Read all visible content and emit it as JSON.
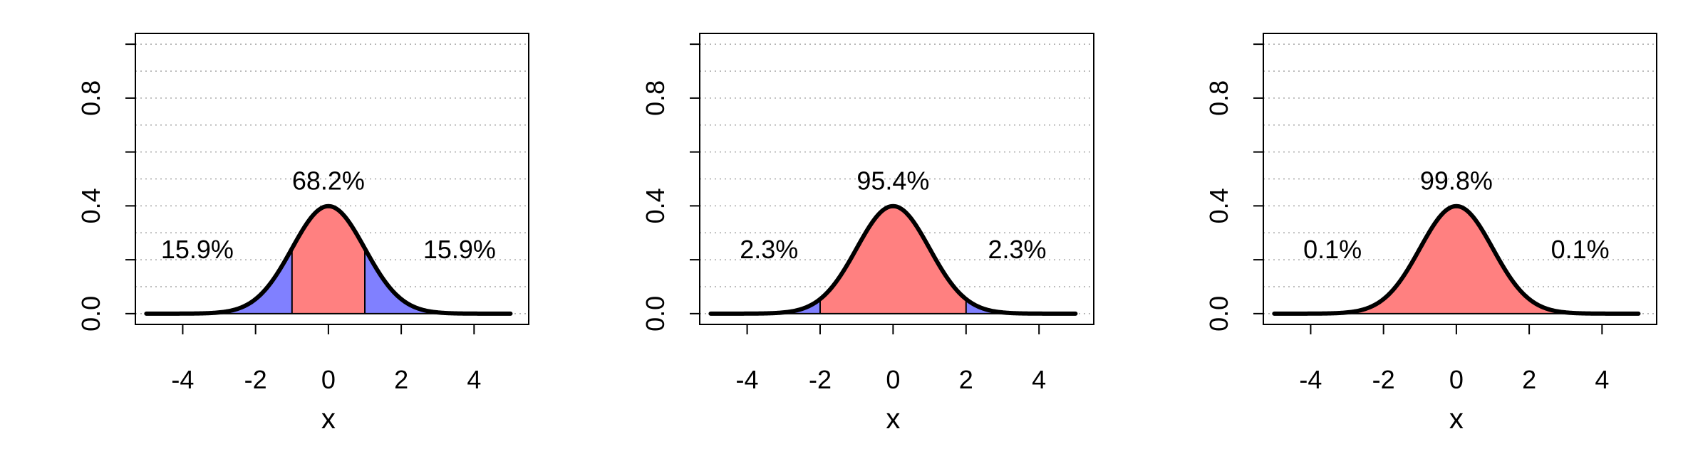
{
  "chart_data": [
    {
      "type": "area",
      "title": "",
      "xlabel": "x",
      "ylabel": "",
      "xlim": [
        -5.3,
        5.5
      ],
      "ylim": [
        -0.04,
        1.04
      ],
      "xticks": [
        "-4",
        "-2",
        "0",
        "2",
        "4"
      ],
      "yticks": [
        "0.0",
        "0.4",
        "0.8"
      ],
      "grid": "horizontal dotted",
      "curve": "standard normal density",
      "curve_x_range": [
        -5,
        5
      ],
      "center_band": [
        -1,
        1
      ],
      "center_color": "#ff8080",
      "tail_color": "#8080ff",
      "labels": {
        "center": {
          "text": "68.2%",
          "x": 0,
          "y": 0.46
        },
        "left": {
          "text": "15.9%",
          "x": -3.6,
          "y": 0.205
        },
        "right": {
          "text": "15.9%",
          "x": 3.6,
          "y": 0.205
        }
      }
    },
    {
      "type": "area",
      "title": "",
      "xlabel": "x",
      "ylabel": "",
      "xlim": [
        -5.3,
        5.5
      ],
      "ylim": [
        -0.04,
        1.04
      ],
      "xticks": [
        "-4",
        "-2",
        "0",
        "2",
        "4"
      ],
      "yticks": [
        "0.0",
        "0.4",
        "0.8"
      ],
      "grid": "horizontal dotted",
      "curve": "standard normal density",
      "curve_x_range": [
        -5,
        5
      ],
      "center_band": [
        -2,
        2
      ],
      "center_color": "#ff8080",
      "tail_color": "#8080ff",
      "labels": {
        "center": {
          "text": "95.4%",
          "x": 0,
          "y": 0.46
        },
        "left": {
          "text": "2.3%",
          "x": -3.4,
          "y": 0.205
        },
        "right": {
          "text": "2.3%",
          "x": 3.4,
          "y": 0.205
        }
      }
    },
    {
      "type": "area",
      "title": "",
      "xlabel": "x",
      "ylabel": "",
      "xlim": [
        -5.3,
        5.5
      ],
      "ylim": [
        -0.04,
        1.04
      ],
      "xticks": [
        "-4",
        "-2",
        "0",
        "2",
        "4"
      ],
      "yticks": [
        "0.0",
        "0.4",
        "0.8"
      ],
      "grid": "horizontal dotted",
      "curve": "standard normal density",
      "curve_x_range": [
        -5,
        5
      ],
      "center_band": [
        -3,
        3
      ],
      "center_color": "#ff8080",
      "tail_color": "#8080ff",
      "labels": {
        "center": {
          "text": "99.8%",
          "x": 0,
          "y": 0.46
        },
        "left": {
          "text": "0.1%",
          "x": -3.4,
          "y": 0.205
        },
        "right": {
          "text": "0.1%",
          "x": 3.4,
          "y": 0.205
        }
      }
    }
  ]
}
